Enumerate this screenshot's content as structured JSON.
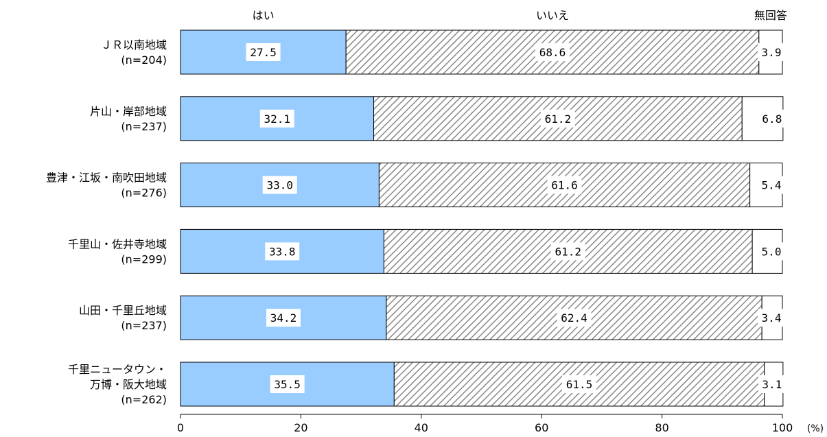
{
  "chart_data": {
    "type": "bar",
    "orientation": "horizontal",
    "stacked": true,
    "unit": "(%)",
    "xlim": [
      0,
      100
    ],
    "x_ticks": [
      "0",
      "20",
      "40",
      "60",
      "80",
      "100"
    ],
    "legend": [
      "はい",
      "いいえ",
      "無回答"
    ],
    "categories": [
      {
        "lines": [
          "ＪＲ以南地域",
          "(n=204)"
        ]
      },
      {
        "lines": [
          "片山・岸部地域",
          "(n=237)"
        ]
      },
      {
        "lines": [
          "豊津・江坂・南吹田地域",
          "(n=276)"
        ]
      },
      {
        "lines": [
          "千里山・佐井寺地域",
          "(n=299)"
        ]
      },
      {
        "lines": [
          "山田・千里丘地域",
          "(n=237)"
        ]
      },
      {
        "lines": [
          "千里ニュータウン・",
          "万博・阪大地域",
          "(n=262)"
        ]
      }
    ],
    "series": [
      {
        "name": "はい",
        "color": "#99ccff",
        "pattern": "solid",
        "values": [
          27.5,
          32.1,
          33.0,
          33.8,
          34.2,
          35.5
        ],
        "labels": [
          "27.5",
          "32.1",
          "33.0",
          "33.8",
          "34.2",
          "35.5"
        ]
      },
      {
        "name": "いいえ",
        "color": "#888888",
        "pattern": "diagonal-hatch",
        "values": [
          68.6,
          61.2,
          61.6,
          61.2,
          62.4,
          61.5
        ],
        "labels": [
          "68.6",
          "61.2",
          "61.6",
          "61.2",
          "62.4",
          "61.5"
        ]
      },
      {
        "name": "無回答",
        "color": "#ffffff",
        "pattern": "solid",
        "values": [
          3.9,
          6.8,
          5.4,
          5.0,
          3.4,
          3.1
        ],
        "labels": [
          "3.9",
          "6.8",
          "5.4",
          "5.0",
          "3.4",
          "3.1"
        ]
      }
    ]
  }
}
